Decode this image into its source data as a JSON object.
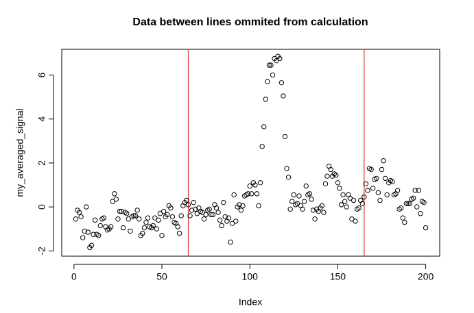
{
  "chart_data": {
    "type": "scatter",
    "title": "Data between lines ommited from calculation",
    "x_label": "Index",
    "y_label": "my_averaged_signal",
    "x": [
      1,
      2,
      3,
      4,
      5,
      6,
      7,
      8,
      9,
      10,
      11,
      12,
      13,
      14,
      15,
      16,
      17,
      18,
      19,
      20,
      21,
      22,
      23,
      24,
      25,
      26,
      27,
      28,
      29,
      30,
      31,
      32,
      33,
      34,
      35,
      36,
      37,
      38,
      39,
      40,
      41,
      42,
      43,
      44,
      45,
      46,
      47,
      48,
      49,
      50,
      51,
      52,
      53,
      54,
      55,
      56,
      57,
      58,
      59,
      60,
      61,
      62,
      63,
      64,
      65,
      66,
      67,
      68,
      69,
      70,
      71,
      72,
      73,
      74,
      75,
      76,
      77,
      78,
      79,
      80,
      81,
      82,
      83,
      84,
      85,
      86,
      87,
      88,
      89,
      90,
      91,
      92,
      93,
      94,
      95,
      96,
      97,
      98,
      99,
      100,
      101,
      102,
      103,
      104,
      105,
      106,
      107,
      108,
      109,
      110,
      111,
      112,
      113,
      114,
      115,
      116,
      117,
      118,
      119,
      120,
      121,
      122,
      123,
      124,
      125,
      126,
      127,
      128,
      129,
      130,
      131,
      132,
      133,
      134,
      135,
      136,
      137,
      138,
      139,
      140,
      141,
      142,
      143,
      144,
      145,
      146,
      147,
      148,
      149,
      150,
      151,
      152,
      153,
      154,
      155,
      156,
      157,
      158,
      159,
      160,
      161,
      162,
      163,
      164,
      165,
      166,
      167,
      168,
      169,
      170,
      171,
      172,
      173,
      174,
      175,
      176,
      177,
      178,
      179,
      180,
      181,
      182,
      183,
      184,
      185,
      186,
      187,
      188,
      189,
      190,
      191,
      192,
      193,
      194,
      195,
      196,
      197,
      198,
      199,
      200
    ],
    "values": [
      -0.55,
      -0.15,
      -0.25,
      -0.45,
      -1.4,
      -1.1,
      0.0,
      -1.15,
      -1.85,
      -1.75,
      -1.25,
      -0.6,
      -1.25,
      -1.3,
      -0.85,
      -0.55,
      -0.5,
      -0.9,
      -1.05,
      -1.0,
      -0.9,
      0.25,
      0.6,
      0.35,
      -0.55,
      -0.2,
      -0.2,
      -0.95,
      -0.25,
      -0.3,
      -0.55,
      -1.1,
      -0.45,
      -0.4,
      -0.4,
      -0.15,
      -0.55,
      -1.3,
      -1.2,
      -0.95,
      -0.7,
      -0.5,
      -0.9,
      -0.95,
      -0.85,
      -0.5,
      -1.0,
      -0.6,
      -0.3,
      -1.3,
      -0.2,
      -0.45,
      -0.35,
      0.05,
      -0.05,
      -0.45,
      -0.7,
      -0.75,
      -0.9,
      -1.2,
      -0.4,
      0.05,
      0.2,
      0.3,
      0.1,
      -0.4,
      -0.15,
      0.2,
      -0.1,
      -0.3,
      -0.05,
      -0.2,
      -0.25,
      -0.55,
      -0.35,
      -0.15,
      -0.1,
      -0.35,
      -0.35,
      0.1,
      -0.05,
      -0.25,
      -0.6,
      -0.85,
      0.2,
      -0.45,
      -0.65,
      -0.5,
      -1.6,
      -0.75,
      0.55,
      -0.65,
      0.0,
      0.1,
      -0.15,
      0.05,
      0.5,
      0.55,
      0.6,
      0.95,
      0.6,
      1.1,
      1.0,
      0.6,
      0.05,
      1.1,
      2.75,
      3.65,
      4.9,
      5.7,
      6.45,
      6.45,
      6.0,
      6.75,
      6.65,
      6.85,
      6.75,
      5.65,
      5.05,
      3.2,
      1.75,
      1.35,
      -0.1,
      0.25,
      0.55,
      0.1,
      0.15,
      0.5,
      0.05,
      -0.1,
      0.25,
      0.95,
      0.55,
      0.6,
      0.35,
      -0.15,
      -0.55,
      -0.1,
      -0.2,
      -0.05,
      0.05,
      -0.25,
      1.05,
      1.4,
      1.85,
      1.7,
      1.4,
      1.5,
      1.45,
      1.1,
      0.85,
      0.1,
      0.55,
      0.25,
      0.0,
      0.55,
      0.4,
      -0.55,
      0.3,
      -0.65,
      -0.1,
      -0.05,
      0.3,
      0.15,
      0.45,
      1.05,
      0.75,
      1.75,
      1.7,
      0.85,
      1.25,
      1.3,
      0.65,
      0.3,
      1.7,
      2.1,
      1.3,
      0.55,
      1.1,
      1.2,
      1.15,
      0.55,
      0.6,
      0.75,
      -0.1,
      -0.05,
      -0.5,
      -0.7,
      0.15,
      0.15,
      0.15,
      0.35,
      0.4,
      0.75,
      0.0,
      0.75,
      -0.3,
      0.25,
      0.2,
      -0.95
    ],
    "color": "#000000",
    "vlines": {
      "values": [
        65,
        165
      ],
      "color": "#e8332a"
    },
    "xlim": [
      -6.96,
      207.96
    ],
    "ylim": [
      -2.24,
      7.17
    ],
    "xticks": [
      0,
      50,
      100,
      150,
      200
    ],
    "yticks": [
      -2,
      0,
      2,
      4,
      6
    ]
  }
}
